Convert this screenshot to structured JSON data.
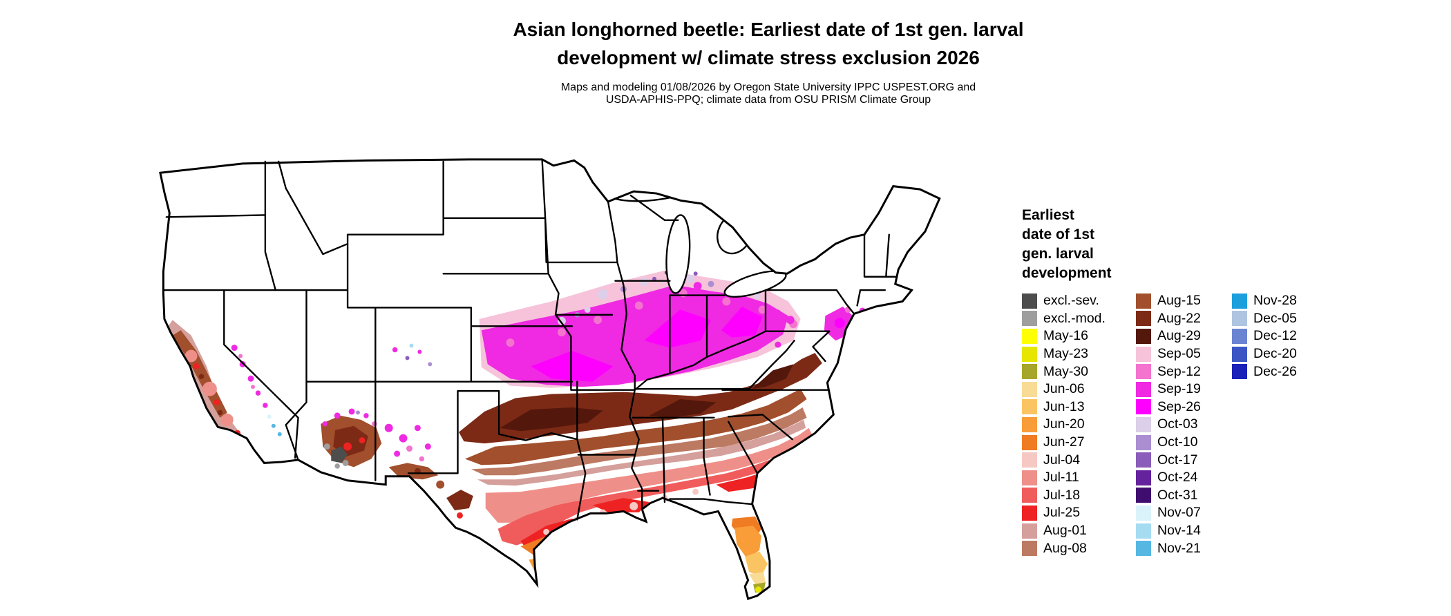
{
  "header": {
    "title_line1": "Asian longhorned beetle: Earliest date of 1st gen. larval",
    "title_line2": "development w/ climate stress exclusion 2026",
    "subtitle_line1": "Maps and modeling 01/08/2026 by Oregon State University IPPC USPEST.ORG and",
    "subtitle_line2": "USDA-APHIS-PPQ; climate data from OSU PRISM Climate Group"
  },
  "legend": {
    "title_lines": [
      "Earliest",
      "date of 1st",
      "gen. larval",
      "development"
    ],
    "columns": [
      [
        {
          "label": "excl.-sev.",
          "color": "#4d4d4d"
        },
        {
          "label": "excl.-mod.",
          "color": "#9e9e9e"
        },
        {
          "label": "May-16",
          "color": "#feff00"
        },
        {
          "label": "May-23",
          "color": "#e6e600"
        },
        {
          "label": "May-30",
          "color": "#a6a62a"
        },
        {
          "label": "Jun-06",
          "color": "#f8dc96"
        },
        {
          "label": "Jun-13",
          "color": "#fbc463"
        },
        {
          "label": "Jun-20",
          "color": "#f99d38"
        },
        {
          "label": "Jun-27",
          "color": "#ef7b22"
        },
        {
          "label": "Jul-04",
          "color": "#f6c8c3"
        },
        {
          "label": "Jul-11",
          "color": "#ee9089"
        },
        {
          "label": "Jul-18",
          "color": "#f05c5c"
        },
        {
          "label": "Jul-25",
          "color": "#ee2222"
        },
        {
          "label": "Aug-01",
          "color": "#d59f9b"
        },
        {
          "label": "Aug-08",
          "color": "#bd7a63"
        }
      ],
      [
        {
          "label": "Aug-15",
          "color": "#a14f2c"
        },
        {
          "label": "Aug-22",
          "color": "#7c2a16"
        },
        {
          "label": "Aug-29",
          "color": "#54170b"
        },
        {
          "label": "Sep-05",
          "color": "#f6c3da"
        },
        {
          "label": "Sep-12",
          "color": "#f473cf"
        },
        {
          "label": "Sep-19",
          "color": "#ef2ae2"
        },
        {
          "label": "Sep-26",
          "color": "#fe01fe"
        },
        {
          "label": "Oct-03",
          "color": "#dccfe9"
        },
        {
          "label": "Oct-10",
          "color": "#ab8ed1"
        },
        {
          "label": "Oct-17",
          "color": "#8b5cba"
        },
        {
          "label": "Oct-24",
          "color": "#64229c"
        },
        {
          "label": "Oct-31",
          "color": "#3f0d70"
        },
        {
          "label": "Nov-07",
          "color": "#daf3fb"
        },
        {
          "label": "Nov-14",
          "color": "#a6dcf2"
        },
        {
          "label": "Nov-21",
          "color": "#56b7e3"
        }
      ],
      [
        {
          "label": "Nov-28",
          "color": "#1b9fdd"
        },
        {
          "label": "Dec-05",
          "color": "#aec4e0"
        },
        {
          "label": "Dec-12",
          "color": "#6b84d2"
        },
        {
          "label": "Dec-20",
          "color": "#3b56c4"
        },
        {
          "label": "Dec-26",
          "color": "#1a21b8"
        }
      ]
    ]
  }
}
